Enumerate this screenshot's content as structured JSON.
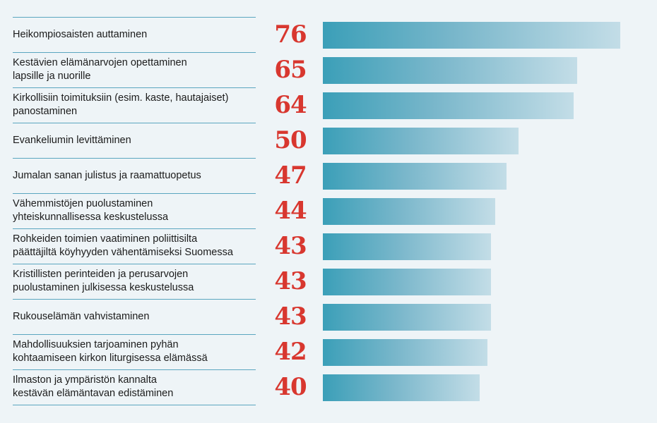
{
  "chart_data": {
    "type": "bar",
    "orientation": "horizontal",
    "categories": [
      "Heikompiosaisten auttaminen",
      "Kestävien elämänarvojen opettaminen\nlapsille ja nuorille",
      "Kirkollisiin toimituksiin (esim. kaste, hautajaiset)\npanostaminen",
      "Evankeliumin levittäminen",
      "Jumalan sanan julistus ja raamattuopetus",
      "Vähemmistöjen puolustaminen\nyhteiskunnallisessa keskustelussa",
      "Rohkeiden toimien vaatiminen poliittisilta\npäättäjiltä köyhyyden vähentämiseksi Suomessa",
      "Kristillisten perinteiden ja perusarvojen\npuolustaminen julkisessa keskustelussa",
      "Rukouselämän vahvistaminen",
      "Mahdollisuuksien tarjoaminen pyhän\nkohtaamiseen kirkon liturgisessa elämässä",
      "Ilmaston ja ympäristön kannalta\nkestävän elämäntavan edistäminen"
    ],
    "values": [
      76,
      65,
      64,
      50,
      47,
      44,
      43,
      43,
      43,
      42,
      40
    ],
    "title": "",
    "xlabel": "",
    "ylabel": "",
    "xlim": [
      0,
      76
    ],
    "grid": false,
    "legend": "none",
    "colors": {
      "value_text": "#d8372f",
      "bar_start": "#3b9fb8",
      "bar_end": "#c3dde7",
      "divider": "#5aa6bf",
      "background": "#eef4f7"
    }
  }
}
